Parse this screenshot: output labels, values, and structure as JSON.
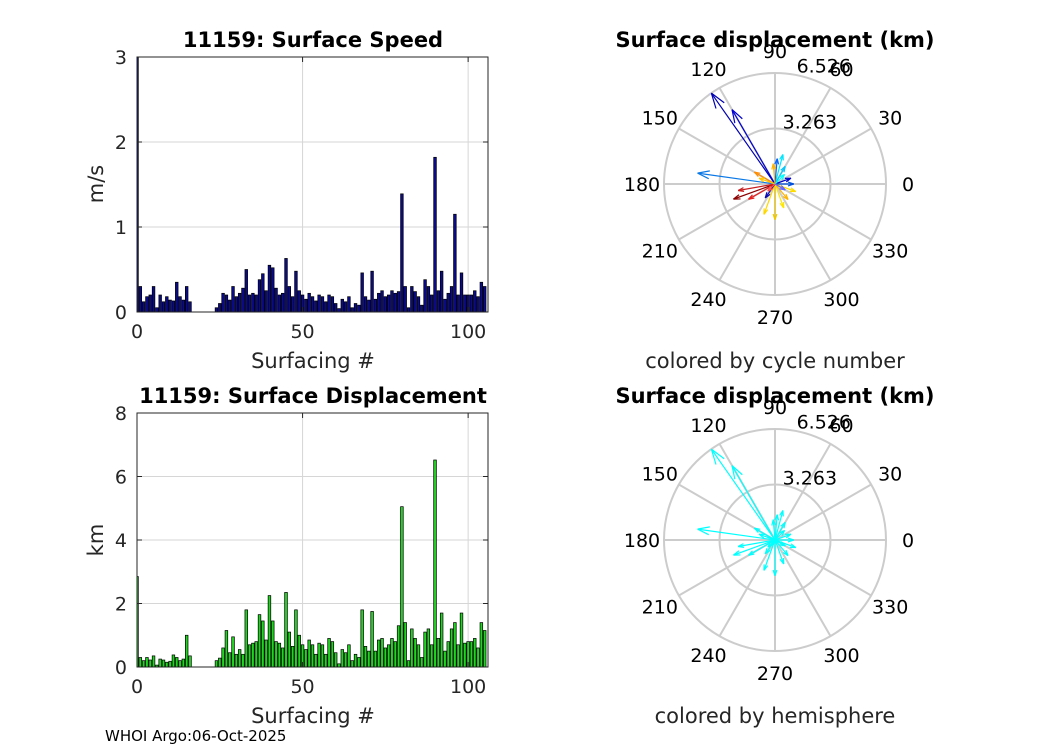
{
  "footer": "WHOI Argo:06-Oct-2025",
  "colors": {
    "speed_bar": "#0a0a8c",
    "disp_bar": "#1fd51f",
    "grid": "#d6d6d6",
    "axis": "#262626",
    "polar_hemisphere": "#00ffff"
  },
  "chart_data": [
    {
      "type": "bar",
      "id": "speed",
      "title": "11159: Surface Speed",
      "xlabel": "Surfacing #",
      "ylabel": "m/s",
      "xlim": [
        0,
        106
      ],
      "ylim": [
        0,
        3
      ],
      "xticks": [
        "0",
        "50",
        "100"
      ],
      "yticks": [
        "0",
        "1",
        "2",
        "3"
      ],
      "values": [
        3.0,
        0.3,
        0.12,
        0.18,
        0.2,
        0.3,
        0.05,
        0.2,
        0.12,
        0.18,
        0.14,
        0.13,
        0.35,
        0.18,
        0.14,
        0.3,
        0.12,
        0,
        0,
        0,
        0,
        0,
        0,
        0,
        0.05,
        0.1,
        0.22,
        0.2,
        0.14,
        0.3,
        0.18,
        0.22,
        0.28,
        0.5,
        0.2,
        0.22,
        0.2,
        0.38,
        0.45,
        0.25,
        0.55,
        0.52,
        0.28,
        0.2,
        0.22,
        0.63,
        0.3,
        0.18,
        0.48,
        0.25,
        0.2,
        0.15,
        0.22,
        0.18,
        0.13,
        0.2,
        0.18,
        0.12,
        0.2,
        0.18,
        0.1,
        0.04,
        0.15,
        0.12,
        0.18,
        0.05,
        0.1,
        0.08,
        0.46,
        0.18,
        0.14,
        0.48,
        0.15,
        0.22,
        0.25,
        0.18,
        0.2,
        0.25,
        0.22,
        0.24,
        1.39,
        0.3,
        0.05,
        0.3,
        0.24,
        0.18,
        0.08,
        0.38,
        0.3,
        0.2,
        1.82,
        0.25,
        0.48,
        0.15,
        0.22,
        0.3,
        1.15,
        0.2,
        0.46,
        0.2,
        0.2,
        0.2,
        0.25,
        0.18,
        0.35,
        0.3
      ]
    },
    {
      "type": "bar",
      "id": "displacement",
      "title": "11159: Surface Displacement",
      "xlabel": "Surfacing #",
      "ylabel": "km",
      "xlim": [
        0,
        106
      ],
      "ylim": [
        0,
        8
      ],
      "xticks": [
        "0",
        "50",
        "100"
      ],
      "yticks": [
        "0",
        "2",
        "4",
        "6",
        "8"
      ],
      "values": [
        2.85,
        0.3,
        0.2,
        0.3,
        0.22,
        0.35,
        0.06,
        0.25,
        0.22,
        0.15,
        0.18,
        0.38,
        0.3,
        0.2,
        0.25,
        1.0,
        0.35,
        0,
        0,
        0,
        0,
        0,
        0,
        0,
        0.2,
        0.28,
        0.6,
        1.15,
        0.45,
        0.95,
        0.4,
        0.55,
        0.4,
        1.8,
        0.7,
        0.75,
        0.8,
        1.65,
        1.45,
        0.85,
        2.25,
        1.45,
        0.8,
        0.75,
        0.6,
        2.35,
        1.1,
        0.65,
        1.8,
        1.0,
        0.7,
        0.55,
        0.85,
        0.7,
        0.4,
        0.75,
        0.7,
        0.4,
        0.9,
        0.8,
        0.45,
        0.1,
        0.55,
        0.45,
        0.7,
        0.2,
        0.4,
        0.3,
        1.8,
        0.65,
        0.5,
        1.75,
        0.5,
        0.85,
        0.9,
        0.6,
        0.7,
        0.9,
        0.8,
        1.3,
        5.05,
        1.4,
        0.2,
        1.2,
        0.9,
        0.7,
        0.3,
        1.1,
        1.2,
        0.7,
        6.52,
        0.9,
        1.7,
        0.5,
        0.8,
        1.2,
        1.4,
        0.7,
        1.7,
        0.75,
        0.8,
        0.8,
        0.9,
        0.6,
        1.4,
        1.15
      ]
    },
    {
      "type": "polar",
      "id": "polar-cycle",
      "title": "Surface displacement (km)",
      "caption": "colored by cycle number",
      "rmax": 6.526,
      "ring_labels": [
        "3.263",
        "6.526"
      ],
      "angle_labels": [
        "0",
        "30",
        "60",
        "90",
        "120",
        "150",
        "180",
        "210",
        "240",
        "270",
        "300",
        "330"
      ],
      "arrows": [
        {
          "angle": 125,
          "r": 6.52,
          "color": "#0000b4"
        },
        {
          "angle": 120,
          "r": 5.05,
          "color": "#0000d2"
        },
        {
          "angle": 172,
          "r": 4.6,
          "color": "#0a78e6"
        },
        {
          "angle": 200,
          "r": 2.6,
          "color": "#8c0000"
        },
        {
          "angle": 190,
          "r": 2.2,
          "color": "#c81e1e"
        },
        {
          "angle": 210,
          "r": 1.8,
          "color": "#e61e1e"
        },
        {
          "angle": 250,
          "r": 1.9,
          "color": "#ffd700"
        },
        {
          "angle": 270,
          "r": 2.1,
          "color": "#f0c800"
        },
        {
          "angle": 290,
          "r": 1.5,
          "color": "#ffe600"
        },
        {
          "angle": 310,
          "r": 1.2,
          "color": "#ffb400"
        },
        {
          "angle": 340,
          "r": 1.3,
          "color": "#ffdc00"
        },
        {
          "angle": 60,
          "r": 1.2,
          "color": "#00c8ff"
        },
        {
          "angle": 75,
          "r": 1.8,
          "color": "#00e6ff"
        },
        {
          "angle": 85,
          "r": 1.5,
          "color": "#0064ff"
        },
        {
          "angle": 95,
          "r": 1.2,
          "color": "#ffb400"
        },
        {
          "angle": 150,
          "r": 1.4,
          "color": "#ff8c00"
        },
        {
          "angle": 160,
          "r": 1.0,
          "color": "#ffc800"
        },
        {
          "angle": 20,
          "r": 1.0,
          "color": "#0000c8"
        },
        {
          "angle": 0,
          "r": 1.1,
          "color": "#0050dc"
        },
        {
          "angle": 235,
          "r": 1.0,
          "color": "#0a0ab4"
        },
        {
          "angle": 45,
          "r": 0.8,
          "color": "#00ffff"
        },
        {
          "angle": 330,
          "r": 0.7,
          "color": "#6464ff"
        },
        {
          "angle": 225,
          "r": 0.6,
          "color": "#ff5050"
        }
      ]
    },
    {
      "type": "polar",
      "id": "polar-hemisphere",
      "title": "Surface displacement (km)",
      "caption": "colored by hemisphere",
      "rmax": 6.526,
      "ring_labels": [
        "3.263",
        "6.526"
      ],
      "angle_labels": [
        "0",
        "30",
        "60",
        "90",
        "120",
        "150",
        "180",
        "210",
        "240",
        "270",
        "300",
        "330"
      ],
      "arrows": [
        {
          "angle": 125,
          "r": 6.52,
          "color": "#00ffff"
        },
        {
          "angle": 120,
          "r": 5.05,
          "color": "#00ffff"
        },
        {
          "angle": 172,
          "r": 4.6,
          "color": "#00ffff"
        },
        {
          "angle": 200,
          "r": 2.6,
          "color": "#00ffff"
        },
        {
          "angle": 190,
          "r": 2.2,
          "color": "#00ffff"
        },
        {
          "angle": 210,
          "r": 1.8,
          "color": "#00ffff"
        },
        {
          "angle": 250,
          "r": 1.9,
          "color": "#00ffff"
        },
        {
          "angle": 270,
          "r": 2.1,
          "color": "#00ffff"
        },
        {
          "angle": 290,
          "r": 1.5,
          "color": "#00ffff"
        },
        {
          "angle": 310,
          "r": 1.2,
          "color": "#00ffff"
        },
        {
          "angle": 340,
          "r": 1.3,
          "color": "#00ffff"
        },
        {
          "angle": 60,
          "r": 1.2,
          "color": "#00ffff"
        },
        {
          "angle": 75,
          "r": 1.8,
          "color": "#00ffff"
        },
        {
          "angle": 85,
          "r": 1.5,
          "color": "#00ffff"
        },
        {
          "angle": 95,
          "r": 1.2,
          "color": "#00ffff"
        },
        {
          "angle": 150,
          "r": 1.4,
          "color": "#00ffff"
        },
        {
          "angle": 160,
          "r": 1.0,
          "color": "#00ffff"
        },
        {
          "angle": 20,
          "r": 1.0,
          "color": "#00ffff"
        },
        {
          "angle": 0,
          "r": 1.1,
          "color": "#00ffff"
        },
        {
          "angle": 235,
          "r": 1.0,
          "color": "#00ffff"
        },
        {
          "angle": 45,
          "r": 0.8,
          "color": "#00ffff"
        },
        {
          "angle": 330,
          "r": 0.7,
          "color": "#00ffff"
        },
        {
          "angle": 225,
          "r": 0.6,
          "color": "#00ffff"
        }
      ]
    }
  ]
}
